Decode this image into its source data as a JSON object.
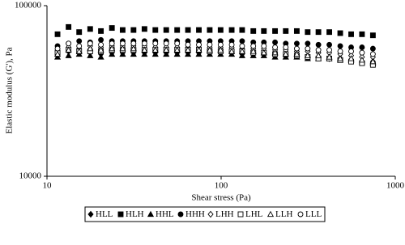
{
  "chart_data": {
    "type": "scatter",
    "x_label": "Shear stress (Pa)",
    "y_label": "Elastic modulus (G'), Pa",
    "x": [
      11.5,
      13.3,
      15.3,
      17.7,
      20.4,
      23.6,
      27.2,
      31.4,
      36.3,
      41.9,
      48.4,
      55.9,
      64.5,
      74.5,
      86.0,
      99.3,
      115,
      132,
      153,
      176,
      204,
      235,
      272,
      314,
      362,
      418,
      483,
      558,
      644,
      744
    ],
    "xlim": [
      10,
      1000
    ],
    "xticks": [
      10,
      100,
      1000
    ],
    "xscale": "log",
    "ylim": [
      10000,
      100000
    ],
    "yticks": [
      10000,
      100000
    ],
    "yscale": "log",
    "legend": "bottom",
    "series": [
      {
        "name": "HLL",
        "color": "#000000",
        "marker": "diamond",
        "filled": true,
        "values": [
          52000,
          54000,
          53000,
          53000,
          52000,
          53000,
          53000,
          53000,
          53000,
          53000,
          53000,
          53000,
          53000,
          53000,
          53000,
          53000,
          53000,
          52000,
          52000,
          52000,
          51000,
          51000,
          51000,
          50000,
          50000,
          49000,
          49000,
          48000,
          47000,
          47000
        ]
      },
      {
        "name": "HLH",
        "color": "#000000",
        "marker": "square",
        "filled": true,
        "values": [
          68000,
          75000,
          70000,
          73000,
          71000,
          74000,
          72000,
          72000,
          73000,
          72000,
          72000,
          72000,
          72000,
          72000,
          72000,
          72000,
          72000,
          72000,
          71000,
          71000,
          71000,
          71000,
          71000,
          70000,
          70000,
          70000,
          69000,
          68000,
          68000,
          67000
        ]
      },
      {
        "name": "HHL",
        "color": "#000000",
        "marker": "triangle",
        "filled": true,
        "values": [
          50000,
          51000,
          52000,
          51000,
          50000,
          52000,
          52000,
          52000,
          52000,
          52000,
          52000,
          52000,
          52000,
          52000,
          52000,
          52000,
          52000,
          51000,
          51000,
          51000,
          50000,
          50000,
          50000,
          49000,
          49000,
          49000,
          48000,
          48000,
          47000,
          46000
        ]
      },
      {
        "name": "HHH",
        "color": "#000000",
        "marker": "circle",
        "filled": true,
        "values": [
          58000,
          60000,
          62000,
          61000,
          63000,
          62000,
          62000,
          62000,
          62000,
          62000,
          62000,
          62000,
          62000,
          62000,
          62000,
          62000,
          62000,
          62000,
          61000,
          61000,
          61000,
          60000,
          60000,
          60000,
          59000,
          59000,
          58000,
          57000,
          57000,
          56000
        ]
      },
      {
        "name": "LHH",
        "color": "#000000",
        "marker": "diamond",
        "filled": false,
        "values": [
          54000,
          57000,
          56000,
          58000,
          57000,
          58000,
          58000,
          58000,
          58000,
          57000,
          57000,
          57000,
          57000,
          57000,
          57000,
          57000,
          57000,
          56000,
          56000,
          56000,
          55000,
          55000,
          54000,
          54000,
          53000,
          53000,
          52000,
          51000,
          50000,
          50000
        ]
      },
      {
        "name": "LHL",
        "color": "#000000",
        "marker": "square",
        "filled": false,
        "values": [
          53000,
          55000,
          54000,
          54000,
          54000,
          55000,
          55000,
          55000,
          55000,
          55000,
          55000,
          55000,
          55000,
          55000,
          54000,
          54000,
          54000,
          54000,
          53000,
          53000,
          52000,
          52000,
          51000,
          50000,
          49000,
          49000,
          48000,
          47000,
          46000,
          45000
        ]
      },
      {
        "name": "LLH",
        "color": "#000000",
        "marker": "triangle",
        "filled": false,
        "values": [
          52000,
          55000,
          54000,
          56000,
          55000,
          56000,
          56000,
          56000,
          55000,
          55000,
          55000,
          55000,
          55000,
          55000,
          55000,
          55000,
          54000,
          54000,
          54000,
          53000,
          53000,
          52000,
          52000,
          51000,
          51000,
          50000,
          49000,
          49000,
          48000,
          47000
        ]
      },
      {
        "name": "LLL",
        "color": "#000000",
        "marker": "circle",
        "filled": false,
        "values": [
          56000,
          60000,
          58000,
          60000,
          59000,
          60000,
          60000,
          60000,
          60000,
          60000,
          60000,
          60000,
          59000,
          59000,
          59000,
          59000,
          59000,
          58000,
          58000,
          58000,
          57000,
          57000,
          56000,
          56000,
          55000,
          55000,
          54000,
          54000,
          53000,
          52000
        ]
      }
    ]
  }
}
